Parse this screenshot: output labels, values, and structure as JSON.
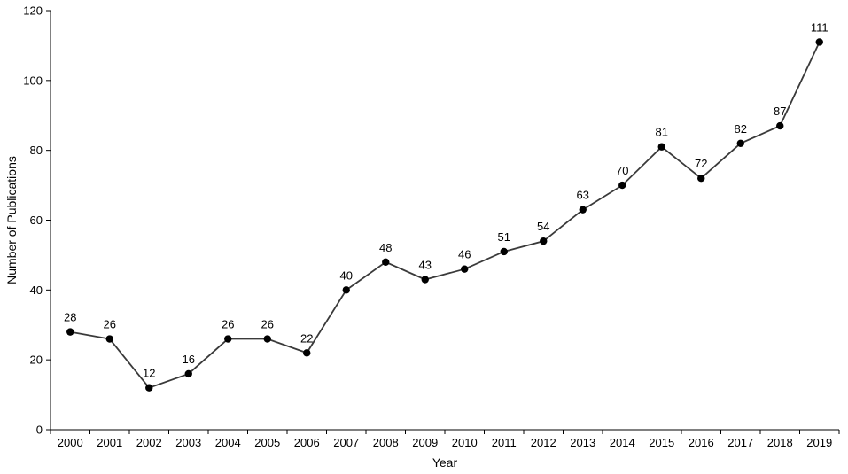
{
  "chart_data": {
    "type": "line",
    "title": "",
    "xlabel": "Year",
    "ylabel": "Number of Publications",
    "ylim": [
      0,
      120
    ],
    "yticks": [
      0,
      20,
      40,
      60,
      80,
      100,
      120
    ],
    "grid": false,
    "legend": "none",
    "categories": [
      "2000",
      "2001",
      "2002",
      "2003",
      "2004",
      "2005",
      "2006",
      "2007",
      "2008",
      "2009",
      "2010",
      "2011",
      "2012",
      "2013",
      "2014",
      "2015",
      "2016",
      "2017",
      "2018",
      "2019"
    ],
    "series": [
      {
        "values": [
          28,
          26,
          12,
          16,
          26,
          26,
          22,
          40,
          48,
          43,
          46,
          51,
          54,
          63,
          70,
          81,
          72,
          82,
          87,
          111
        ],
        "color": "#3a3a3a"
      }
    ]
  }
}
